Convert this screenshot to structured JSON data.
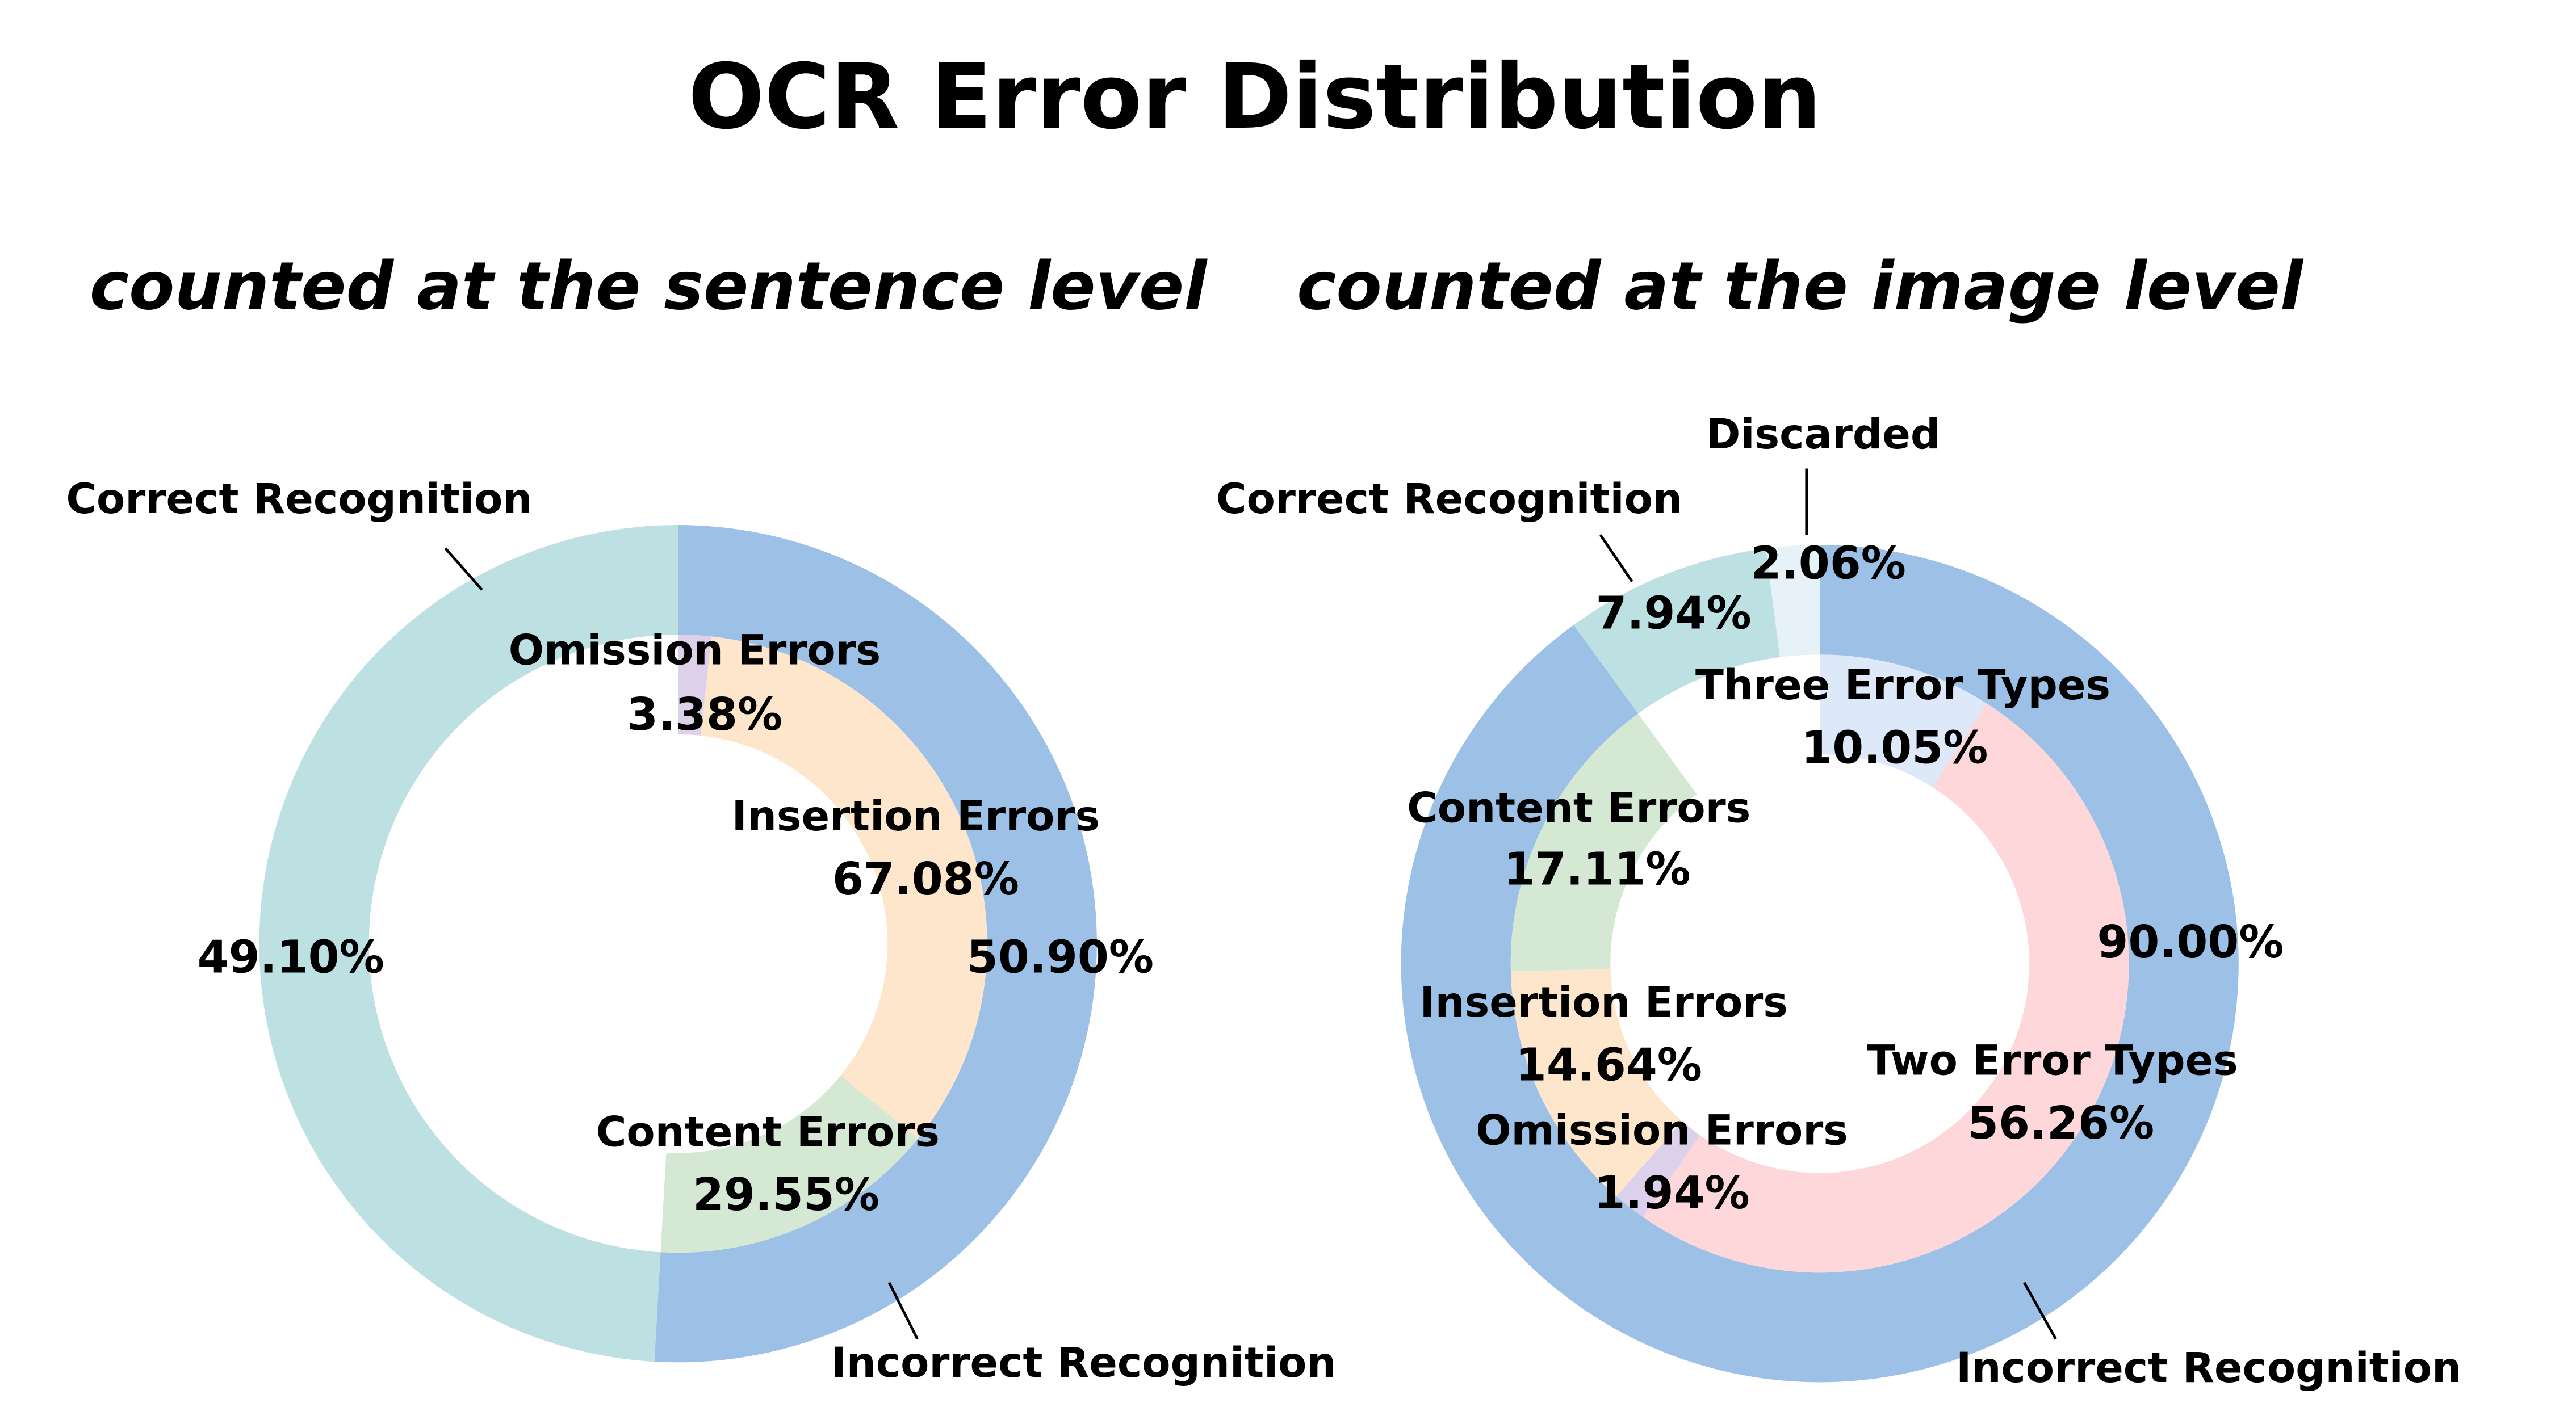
{
  "title": "OCR Error Distribution",
  "chart_data": [
    {
      "type": "donut",
      "title": "counted at the sentence level",
      "rings": [
        {
          "categories": [
            "Correct Recognition",
            "Incorrect Recognition"
          ],
          "values": [
            49.1,
            50.9
          ],
          "value_labels": [
            "49.10%",
            "50.90%"
          ],
          "colors": [
            "#bde0e3",
            "#9dc0e6"
          ]
        },
        {
          "categories": [
            "Omission Errors",
            "Insertion Errors",
            "Content Errors"
          ],
          "values": [
            3.38,
            67.08,
            29.55
          ],
          "value_labels": [
            "3.38%",
            "67.08%",
            "29.55%"
          ],
          "colors": [
            "#ddd0ea",
            "#fde6cc",
            "#d5e8d4"
          ]
        }
      ]
    },
    {
      "type": "donut",
      "title": "counted at the image level",
      "rings": [
        {
          "categories": [
            "Discarded",
            "Correct Recognition",
            "Incorrect Recognition"
          ],
          "values": [
            2.06,
            7.94,
            90.0
          ],
          "value_labels": [
            "2.06%",
            "7.94%",
            "90.00%"
          ],
          "colors": [
            "#e6f2f8",
            "#bde0e3",
            "#9dc0e6"
          ]
        },
        {
          "categories": [
            "Three Error Types",
            "Two Error Types",
            "Omission Errors",
            "Insertion Errors",
            "Content Errors"
          ],
          "values": [
            10.05,
            56.26,
            1.94,
            14.64,
            17.11
          ],
          "value_labels": [
            "10.05%",
            "56.26%",
            "1.94%",
            "14.64%",
            "17.11%"
          ],
          "colors": [
            "#dde8f9",
            "#fdd7da",
            "#ddd0ea",
            "#fde6cc",
            "#d5e8d4"
          ]
        }
      ]
    }
  ]
}
